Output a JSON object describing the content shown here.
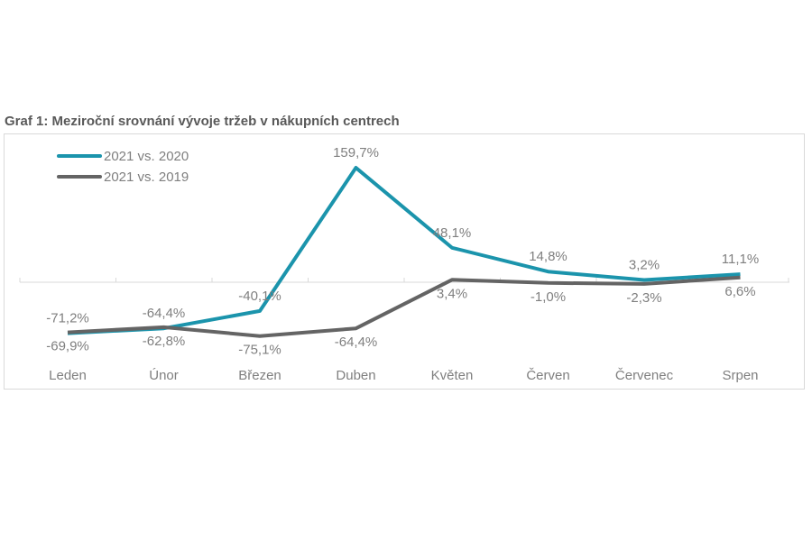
{
  "chart_data": {
    "type": "line",
    "title": "Graf 1: Meziroční srovnání vývoje tržeb v nákupních centrech",
    "categories": [
      "Leden",
      "Únor",
      "Březen",
      "Duben",
      "Květen",
      "Červen",
      "Červenec",
      "Srpen"
    ],
    "series": [
      {
        "name": "2021 vs. 2020",
        "color": "#1b94ac",
        "values": [
          -71.2,
          -64.4,
          -40.1,
          159.7,
          48.1,
          14.8,
          3.2,
          11.1
        ],
        "labels": [
          "-71,2%",
          "-64,4%",
          "-40,1%",
          "159,7%",
          "48,1%",
          "14,8%",
          "3,2%",
          "11,1%"
        ]
      },
      {
        "name": "2021 vs. 2019",
        "color": "#646464",
        "values": [
          -69.9,
          -62.8,
          -75.1,
          -64.4,
          3.4,
          -1.0,
          -2.3,
          6.6
        ],
        "labels": [
          "-69,9%",
          "-62,8%",
          "-75,1%",
          "-64,4%",
          "3,4%",
          "-1,0%",
          "-2,3%",
          "6,6%"
        ]
      }
    ],
    "legend_position": "top-left",
    "grid": false
  }
}
